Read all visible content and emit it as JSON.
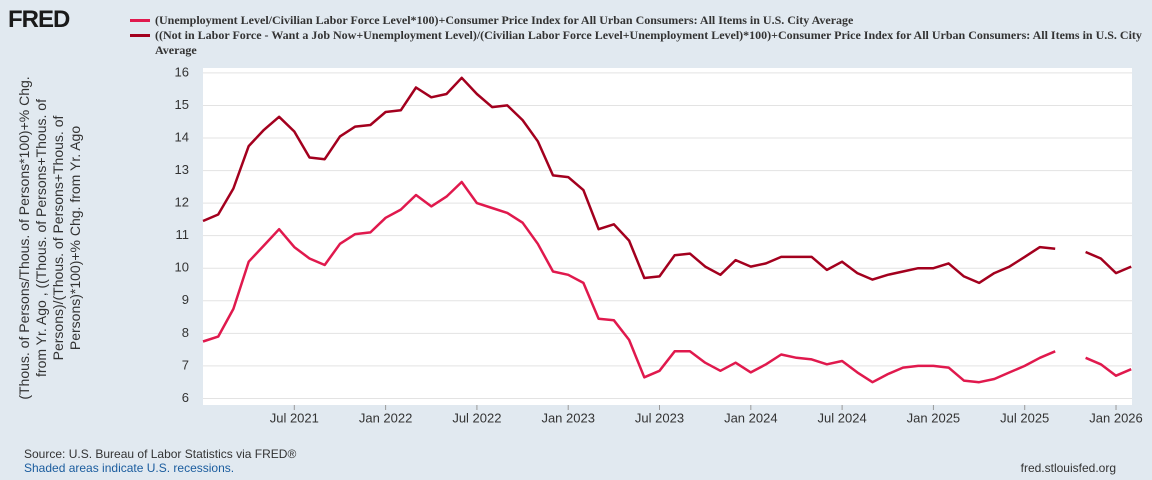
{
  "logo": "FRED",
  "source": "Source: U.S. Bureau of Labor Statistics via FRED®",
  "note": "Shaded areas indicate U.S. recessions.",
  "site": "fred.stlouisfed.org",
  "chart_data": {
    "type": "line",
    "ylabel": [
      "(Thous. of Persons/Thous. of Persons*100)+% Chg.",
      "from Yr. Ago , ((Thous. of Persons+Thous. of",
      "Persons)/(Thous. of Persons+Thous. of",
      "Persons)*100)+% Chg. from Yr. Ago"
    ],
    "x": [
      "Jan 2021",
      "Feb 2021",
      "Mar 2021",
      "Apr 2021",
      "May 2021",
      "Jun 2021",
      "Jul 2021",
      "Aug 2021",
      "Sep 2021",
      "Oct 2021",
      "Nov 2021",
      "Dec 2021",
      "Jan 2022",
      "Feb 2022",
      "Mar 2022",
      "Apr 2022",
      "May 2022",
      "Jun 2022",
      "Jul 2022",
      "Aug 2022",
      "Sep 2022",
      "Oct 2022",
      "Nov 2022",
      "Dec 2022",
      "Jan 2023",
      "Feb 2023",
      "Mar 2023",
      "Apr 2023",
      "May 2023",
      "Jun 2023",
      "Jul 2023",
      "Aug 2023",
      "Sep 2023",
      "Oct 2023",
      "Nov 2023",
      "Dec 2023",
      "Jan 2024",
      "Feb 2024",
      "Mar 2024",
      "Apr 2024",
      "May 2024",
      "Jun 2024",
      "Jul 2024",
      "Aug 2024",
      "Sep 2024",
      "Oct 2024",
      "Nov 2024",
      "Dec 2024",
      "Jan 2025",
      "Feb 2025",
      "Mar 2025",
      "Apr 2025",
      "May 2025",
      "Jun 2025",
      "Jul 2025",
      "Aug 2025",
      "Sep 2025",
      "Oct 2025",
      "Nov 2025",
      "Dec 2025",
      "Jan 2026",
      "Feb 2026"
    ],
    "xticks": [
      "Jul 2021",
      "Jan 2022",
      "Jul 2022",
      "Jan 2023",
      "Jul 2023",
      "Jan 2024",
      "Jul 2024",
      "Jan 2025",
      "Jul 2025",
      "Jan 2026"
    ],
    "ylim": [
      5.8,
      16.15
    ],
    "yticks": [
      6,
      7,
      8,
      9,
      10,
      11,
      12,
      13,
      14,
      15,
      16
    ],
    "grid": true,
    "series": [
      {
        "name": "(Unemployment Level/Civilian Labor Force Level*100)+Consumer Price Index for All Urban Consumers: All Items in U.S. City Average",
        "color": "#e0194d",
        "values": [
          7.75,
          7.9,
          8.75,
          10.2,
          10.7,
          11.2,
          10.65,
          10.3,
          10.1,
          10.75,
          11.05,
          11.1,
          11.55,
          11.8,
          12.25,
          11.9,
          12.2,
          12.65,
          12.0,
          11.85,
          11.7,
          11.4,
          10.75,
          9.9,
          9.8,
          9.55,
          8.45,
          8.4,
          7.8,
          6.65,
          6.85,
          7.45,
          7.45,
          7.1,
          6.85,
          7.1,
          6.8,
          7.05,
          7.35,
          7.25,
          7.2,
          7.05,
          7.15,
          6.8,
          6.5,
          6.75,
          6.95,
          7.0,
          7.0,
          6.95,
          6.55,
          6.5,
          6.6,
          6.8,
          7.0,
          7.25,
          7.45,
          null,
          7.25,
          7.05,
          6.7,
          6.9
        ]
      },
      {
        "name": "((Not in Labor Force - Want a Job Now+Unemployment Level)/(Civilian Labor Force Level+Unemployment Level)*100)+Consumer Price Index for All Urban Consumers: All Items in U.S. City Average",
        "color": "#a3001e",
        "values": [
          11.45,
          11.65,
          12.45,
          13.75,
          14.25,
          14.65,
          14.2,
          13.4,
          13.35,
          14.05,
          14.35,
          14.4,
          14.8,
          14.85,
          15.55,
          15.25,
          15.35,
          15.85,
          15.35,
          14.95,
          15.0,
          14.55,
          13.9,
          12.85,
          12.8,
          12.4,
          11.2,
          11.35,
          10.85,
          9.7,
          9.75,
          10.4,
          10.45,
          10.05,
          9.8,
          10.25,
          10.05,
          10.15,
          10.35,
          10.35,
          10.35,
          9.95,
          10.2,
          9.85,
          9.65,
          9.8,
          9.9,
          10.0,
          10.0,
          10.15,
          9.75,
          9.55,
          9.85,
          10.05,
          10.35,
          10.65,
          10.6,
          null,
          10.5,
          10.3,
          9.85,
          10.05
        ]
      }
    ]
  }
}
